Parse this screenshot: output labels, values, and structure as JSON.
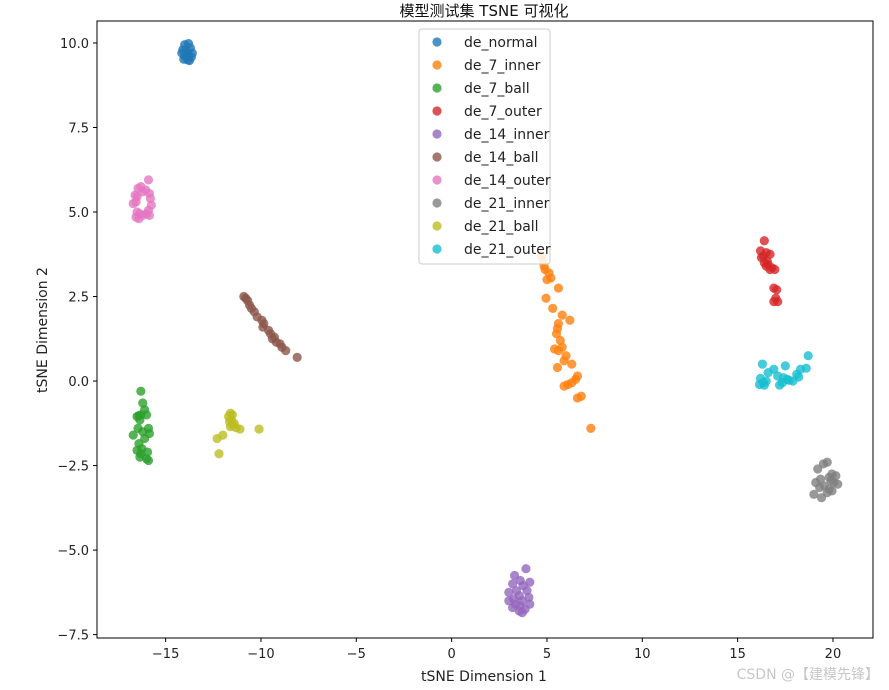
{
  "chart_data": {
    "type": "scatter",
    "title": "模型测试集 TSNE 可视化",
    "xlabel": "tSNE Dimension 1",
    "ylabel": "tSNE Dimension 2",
    "xlim": [
      -18.6,
      22.1
    ],
    "ylim": [
      -7.6,
      10.65
    ],
    "xticks": [
      -15,
      -10,
      -5,
      0,
      5,
      10,
      15,
      20
    ],
    "xtick_labels": [
      "−15",
      "−10",
      "−5",
      "0",
      "5",
      "10",
      "15",
      "20"
    ],
    "yticks": [
      -7.5,
      -5.0,
      -2.5,
      0.0,
      2.5,
      5.0,
      7.5,
      10.0
    ],
    "ytick_labels": [
      "−7.5",
      "−5.0",
      "−2.5",
      "0.0",
      "2.5",
      "5.0",
      "7.5",
      "10.0"
    ],
    "grid": false,
    "legend_position": "upper-center",
    "series": [
      {
        "name": "de_normal",
        "color": "#1f77b4",
        "points": [
          [
            -14.0,
            9.95
          ],
          [
            -13.8,
            9.98
          ],
          [
            -13.7,
            9.85
          ],
          [
            -14.1,
            9.8
          ],
          [
            -13.9,
            9.75
          ],
          [
            -13.6,
            9.7
          ],
          [
            -14.0,
            9.62
          ],
          [
            -13.8,
            9.6
          ],
          [
            -13.65,
            9.58
          ],
          [
            -14.05,
            9.52
          ],
          [
            -13.85,
            9.5
          ],
          [
            -13.75,
            9.48
          ],
          [
            -13.9,
            9.65
          ],
          [
            -14.15,
            9.7
          ]
        ]
      },
      {
        "name": "de_7_inner",
        "color": "#ff7f0e",
        "points": [
          [
            4.7,
            3.7
          ],
          [
            4.8,
            3.55
          ],
          [
            4.85,
            3.4
          ],
          [
            4.9,
            3.3
          ],
          [
            5.1,
            3.2
          ],
          [
            5.0,
            3.0
          ],
          [
            5.2,
            3.05
          ],
          [
            5.6,
            2.75
          ],
          [
            4.95,
            2.45
          ],
          [
            5.3,
            2.15
          ],
          [
            5.8,
            1.95
          ],
          [
            6.2,
            1.8
          ],
          [
            5.6,
            1.7
          ],
          [
            5.55,
            1.55
          ],
          [
            5.5,
            1.4
          ],
          [
            5.7,
            1.2
          ],
          [
            5.8,
            1.0
          ],
          [
            5.4,
            0.95
          ],
          [
            5.6,
            0.9
          ],
          [
            6.0,
            0.75
          ],
          [
            5.9,
            0.6
          ],
          [
            6.3,
            0.5
          ],
          [
            5.55,
            0.4
          ],
          [
            6.6,
            0.15
          ],
          [
            6.5,
            0.05
          ],
          [
            6.3,
            -0.05
          ],
          [
            6.1,
            -0.1
          ],
          [
            5.9,
            -0.15
          ],
          [
            6.8,
            -0.45
          ],
          [
            6.6,
            -0.5
          ],
          [
            7.3,
            -1.4
          ]
        ]
      },
      {
        "name": "de_7_ball",
        "color": "#2ca02c",
        "points": [
          [
            -16.3,
            -0.3
          ],
          [
            -16.2,
            -0.65
          ],
          [
            -16.1,
            -0.85
          ],
          [
            -16.5,
            -1.05
          ],
          [
            -16.4,
            -1.02
          ],
          [
            -16.3,
            -1.0
          ],
          [
            -16.0,
            -1.0
          ],
          [
            -16.35,
            -1.15
          ],
          [
            -15.9,
            -1.4
          ],
          [
            -16.45,
            -1.4
          ],
          [
            -16.2,
            -1.5
          ],
          [
            -15.85,
            -1.55
          ],
          [
            -16.7,
            -1.6
          ],
          [
            -16.1,
            -1.7
          ],
          [
            -16.4,
            -1.85
          ],
          [
            -16.25,
            -2.0
          ],
          [
            -16.5,
            -2.05
          ],
          [
            -16.3,
            -2.15
          ],
          [
            -15.95,
            -2.1
          ],
          [
            -16.35,
            -2.25
          ],
          [
            -16.0,
            -2.3
          ],
          [
            -15.9,
            -2.35
          ]
        ]
      },
      {
        "name": "de_7_outer",
        "color": "#d62728",
        "points": [
          [
            16.4,
            4.15
          ],
          [
            16.2,
            3.85
          ],
          [
            16.5,
            3.8
          ],
          [
            16.7,
            3.75
          ],
          [
            16.35,
            3.7
          ],
          [
            16.25,
            3.65
          ],
          [
            16.55,
            3.55
          ],
          [
            16.4,
            3.5
          ],
          [
            16.6,
            3.45
          ],
          [
            16.5,
            3.4
          ],
          [
            16.8,
            3.35
          ],
          [
            16.95,
            3.3
          ],
          [
            16.7,
            3.3
          ],
          [
            16.9,
            2.75
          ],
          [
            17.05,
            2.7
          ],
          [
            17.0,
            2.45
          ],
          [
            16.9,
            2.35
          ],
          [
            17.1,
            2.35
          ]
        ]
      },
      {
        "name": "de_14_inner",
        "color": "#9467bd",
        "points": [
          [
            3.9,
            -5.55
          ],
          [
            3.3,
            -5.75
          ],
          [
            3.6,
            -5.9
          ],
          [
            3.2,
            -6.0
          ],
          [
            4.1,
            -5.95
          ],
          [
            3.75,
            -6.05
          ],
          [
            3.4,
            -6.2
          ],
          [
            3.95,
            -6.2
          ],
          [
            3.0,
            -6.25
          ],
          [
            3.55,
            -6.35
          ],
          [
            3.25,
            -6.45
          ],
          [
            4.05,
            -6.4
          ],
          [
            3.0,
            -6.5
          ],
          [
            3.7,
            -6.5
          ],
          [
            3.35,
            -6.6
          ],
          [
            4.1,
            -6.6
          ],
          [
            3.6,
            -6.65
          ],
          [
            3.2,
            -6.7
          ],
          [
            3.85,
            -6.75
          ],
          [
            3.55,
            -6.8
          ],
          [
            3.7,
            -6.85
          ]
        ]
      },
      {
        "name": "de_14_ball",
        "color": "#8c564b",
        "points": [
          [
            -10.9,
            2.5
          ],
          [
            -10.8,
            2.45
          ],
          [
            -10.7,
            2.38
          ],
          [
            -10.6,
            2.25
          ],
          [
            -10.5,
            2.15
          ],
          [
            -10.35,
            2.05
          ],
          [
            -10.2,
            1.9
          ],
          [
            -9.95,
            1.8
          ],
          [
            -9.9,
            1.6
          ],
          [
            -9.85,
            1.7
          ],
          [
            -9.6,
            1.5
          ],
          [
            -9.5,
            1.4
          ],
          [
            -9.3,
            1.3
          ],
          [
            -9.4,
            1.25
          ],
          [
            -9.2,
            1.15
          ],
          [
            -9.0,
            1.1
          ],
          [
            -8.9,
            1.0
          ],
          [
            -8.7,
            0.9
          ],
          [
            -8.1,
            0.7
          ]
        ]
      },
      {
        "name": "de_14_outer",
        "color": "#e377c2",
        "points": [
          [
            -15.9,
            5.95
          ],
          [
            -16.3,
            5.75
          ],
          [
            -16.45,
            5.7
          ],
          [
            -16.05,
            5.65
          ],
          [
            -16.2,
            5.6
          ],
          [
            -15.85,
            5.55
          ],
          [
            -16.6,
            5.5
          ],
          [
            -16.5,
            5.45
          ],
          [
            -15.8,
            5.4
          ],
          [
            -16.55,
            5.3
          ],
          [
            -16.7,
            5.25
          ],
          [
            -15.75,
            5.2
          ],
          [
            -15.9,
            5.05
          ],
          [
            -16.5,
            5.0
          ],
          [
            -16.35,
            4.95
          ],
          [
            -16.2,
            4.9
          ],
          [
            -16.0,
            4.95
          ],
          [
            -15.85,
            4.9
          ],
          [
            -16.55,
            4.85
          ],
          [
            -16.4,
            4.8
          ]
        ]
      },
      {
        "name": "de_21_inner",
        "color": "#7f7f7f",
        "points": [
          [
            19.7,
            -2.4
          ],
          [
            19.5,
            -2.45
          ],
          [
            19.2,
            -2.6
          ],
          [
            19.95,
            -2.75
          ],
          [
            20.15,
            -2.8
          ],
          [
            19.8,
            -2.85
          ],
          [
            19.35,
            -2.9
          ],
          [
            19.9,
            -2.95
          ],
          [
            20.05,
            -3.0
          ],
          [
            19.1,
            -3.0
          ],
          [
            20.25,
            -3.05
          ],
          [
            19.55,
            -3.1
          ],
          [
            19.3,
            -3.15
          ],
          [
            19.8,
            -3.2
          ],
          [
            19.95,
            -3.25
          ],
          [
            19.7,
            -3.3
          ],
          [
            19.0,
            -3.35
          ],
          [
            19.4,
            -3.45
          ]
        ]
      },
      {
        "name": "de_21_ball",
        "color": "#bcbd22",
        "points": [
          [
            -11.6,
            -0.95
          ],
          [
            -11.5,
            -1.0
          ],
          [
            -11.7,
            -1.05
          ],
          [
            -11.55,
            -1.15
          ],
          [
            -11.65,
            -1.2
          ],
          [
            -11.4,
            -1.25
          ],
          [
            -11.5,
            -1.3
          ],
          [
            -11.6,
            -1.35
          ],
          [
            -11.3,
            -1.38
          ],
          [
            -11.1,
            -1.42
          ],
          [
            -10.1,
            -1.42
          ],
          [
            -12.0,
            -1.6
          ],
          [
            -12.3,
            -1.7
          ],
          [
            -12.2,
            -2.15
          ]
        ]
      },
      {
        "name": "de_21_outer",
        "color": "#17becf",
        "points": [
          [
            18.7,
            0.75
          ],
          [
            16.3,
            0.5
          ],
          [
            17.5,
            0.45
          ],
          [
            18.3,
            0.35
          ],
          [
            18.6,
            0.38
          ],
          [
            16.9,
            0.35
          ],
          [
            16.6,
            0.25
          ],
          [
            18.1,
            0.2
          ],
          [
            17.1,
            0.15
          ],
          [
            17.4,
            0.1
          ],
          [
            18.2,
            0.12
          ],
          [
            16.2,
            0.08
          ],
          [
            17.6,
            0.05
          ],
          [
            17.9,
            0.0
          ],
          [
            17.7,
            0.02
          ],
          [
            16.5,
            0.0
          ],
          [
            17.35,
            -0.05
          ],
          [
            16.35,
            -0.05
          ],
          [
            16.15,
            -0.1
          ],
          [
            17.2,
            -0.12
          ],
          [
            16.4,
            -0.12
          ]
        ]
      }
    ]
  },
  "watermark": "CSDN @【建模先锋】"
}
